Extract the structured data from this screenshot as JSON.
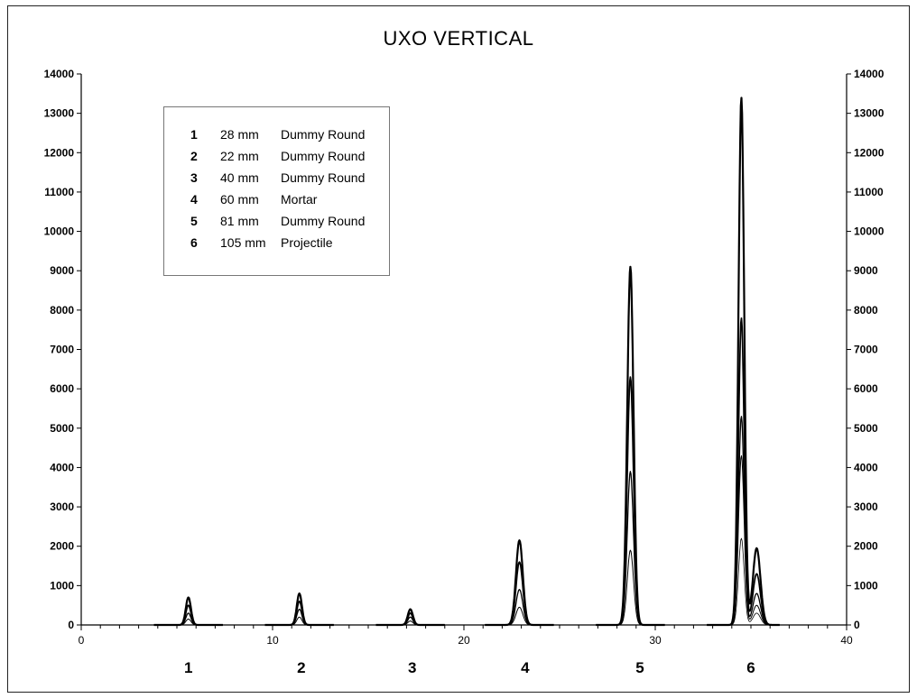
{
  "chart_data": {
    "type": "line",
    "title": "UXO VERTICAL",
    "xlim": [
      0,
      40
    ],
    "ylim": [
      0,
      14000
    ],
    "x_ticks": [
      "0",
      "10",
      "20",
      "30",
      "40"
    ],
    "y_ticks": [
      "0",
      "1000",
      "2000",
      "3000",
      "4000",
      "5000",
      "6000",
      "7000",
      "8000",
      "9000",
      "10000",
      "11000",
      "12000",
      "13000",
      "14000"
    ],
    "y_axis_right": true,
    "grid": false,
    "legend_position": "top-left",
    "legend": [
      {
        "num": "1",
        "size": "28 mm",
        "desc": "Dummy Round"
      },
      {
        "num": "2",
        "size": "22 mm",
        "desc": "Dummy Round"
      },
      {
        "num": "3",
        "size": "40 mm",
        "desc": "Dummy Round"
      },
      {
        "num": "4",
        "size": "60 mm",
        "desc": "Mortar"
      },
      {
        "num": "5",
        "size": "81 mm",
        "desc": "Dummy Round"
      },
      {
        "num": "6",
        "size": "105 mm",
        "desc": "Projectile"
      }
    ],
    "group_labels": [
      {
        "label": "1",
        "x": 5.6
      },
      {
        "label": "2",
        "x": 11.5
      },
      {
        "label": "3",
        "x": 17.3
      },
      {
        "label": "4",
        "x": 23.2
      },
      {
        "label": "5",
        "x": 29.2
      },
      {
        "label": "6",
        "x": 35.0
      }
    ],
    "peaks": [
      {
        "target": "1",
        "x": 5.6,
        "width": 0.45,
        "amplitudes": [
          700,
          500,
          300,
          150
        ]
      },
      {
        "target": "2",
        "x": 11.4,
        "width": 0.45,
        "amplitudes": [
          800,
          600,
          400,
          200
        ]
      },
      {
        "target": "3",
        "x": 17.2,
        "width": 0.45,
        "amplitudes": [
          400,
          300,
          200,
          100
        ]
      },
      {
        "target": "4",
        "x": 22.9,
        "width": 0.6,
        "amplitudes": [
          2150,
          1600,
          900,
          450
        ]
      },
      {
        "target": "5",
        "x": 28.7,
        "width": 0.55,
        "amplitudes": [
          9100,
          6300,
          3900,
          1900
        ]
      },
      {
        "target": "6",
        "x": 34.5,
        "width": 0.5,
        "amplitudes": [
          13400,
          7800,
          5300,
          4300,
          2200
        ],
        "shoulder": {
          "x": 35.3,
          "amplitudes": [
            1950,
            1300,
            800,
            500,
            300
          ]
        }
      }
    ]
  }
}
